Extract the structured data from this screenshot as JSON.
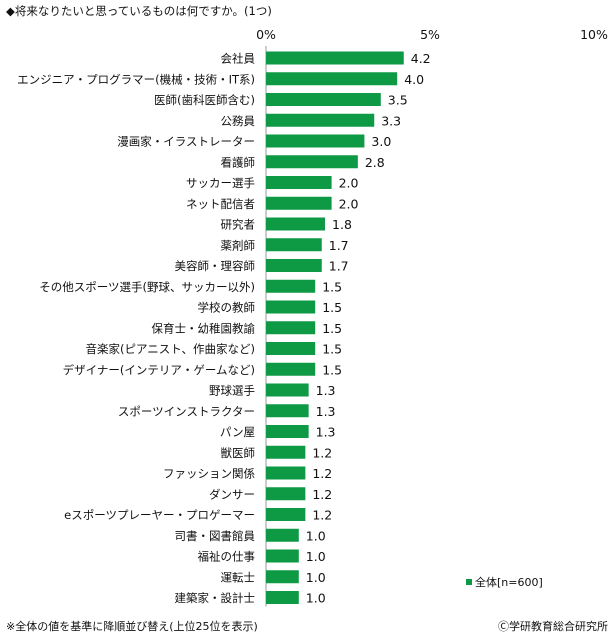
{
  "title": "◆将来なりたいと思っているものは何ですか。(1つ)",
  "footnote": "※全体の値を基準に降順並び替え(上位25位を表示)",
  "copyright": "Ⓒ学研教育総合研究所",
  "colors": {
    "bar": "#0e9a45",
    "axis": "#999999",
    "grid": "#cccccc"
  },
  "chart_data": {
    "type": "bar",
    "orientation": "horizontal",
    "title": "将来なりたいと思っているものは何ですか。(1つ)",
    "xlabel": "",
    "ylabel": "",
    "xlim": [
      0,
      10
    ],
    "ticks": [
      {
        "value": 0,
        "label": "0%"
      },
      {
        "value": 5,
        "label": "5%"
      },
      {
        "value": 10,
        "label": "10%"
      }
    ],
    "legend": "全体[n=600]",
    "series": [
      {
        "name": "全体[n=600]"
      }
    ],
    "categories": [
      "会社員",
      "エンジニア・プログラマー(機械・技術・IT系)",
      "医師(歯科医師含む)",
      "公務員",
      "漫画家・イラストレーター",
      "看護師",
      "サッカー選手",
      "ネット配信者",
      "研究者",
      "薬剤師",
      "美容師・理容師",
      "その他スポーツ選手(野球、サッカー以外)",
      "学校の教師",
      "保育士・幼稚園教諭",
      "音楽家(ピアニスト、作曲家など)",
      "デザイナー(インテリア・ゲームなど)",
      "野球選手",
      "スポーツインストラクター",
      "パン屋",
      "獣医師",
      "ファッション関係",
      "ダンサー",
      "eスポーツプレーヤー・プロゲーマー",
      "司書・図書館員",
      "福祉の仕事",
      "運転士",
      "建築家・設計士"
    ],
    "values": [
      4.2,
      4.0,
      3.5,
      3.3,
      3.0,
      2.8,
      2.0,
      2.0,
      1.8,
      1.7,
      1.7,
      1.5,
      1.5,
      1.5,
      1.5,
      1.5,
      1.3,
      1.3,
      1.3,
      1.2,
      1.2,
      1.2,
      1.2,
      1.0,
      1.0,
      1.0,
      1.0
    ],
    "value_labels": [
      "4.2",
      "4.0",
      "3.5",
      "3.3",
      "3.0",
      "2.8",
      "2.0",
      "2.0",
      "1.8",
      "1.7",
      "1.7",
      "1.5",
      "1.5",
      "1.5",
      "1.5",
      "1.5",
      "1.3",
      "1.3",
      "1.3",
      "1.2",
      "1.2",
      "1.2",
      "1.2",
      "1.0",
      "1.0",
      "1.0",
      "1.0"
    ]
  }
}
